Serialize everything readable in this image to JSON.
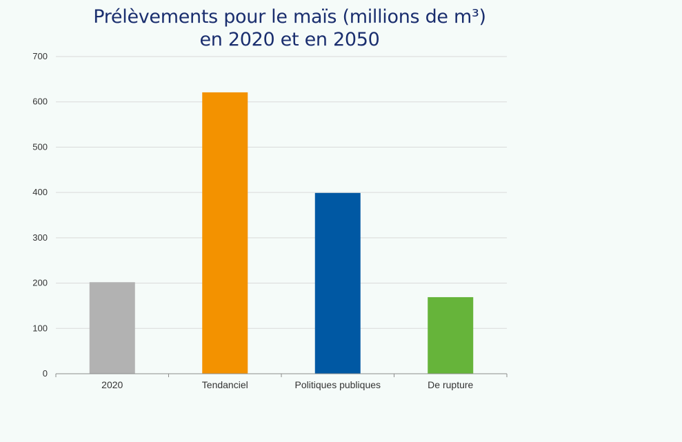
{
  "chart_data": {
    "type": "bar",
    "title_lines": [
      "Prélèvements pour le maïs (millions de m³)",
      "en 2020 et en 2050"
    ],
    "categories": [
      "2020",
      "Tendanciel",
      "Politiques publiques",
      "De rupture"
    ],
    "values": [
      202,
      621,
      399,
      169
    ],
    "colors": [
      "#b2b2b2",
      "#f39200",
      "#0058a3",
      "#66b43a"
    ],
    "ylim": [
      0,
      700
    ],
    "yticks": [
      0,
      100,
      200,
      300,
      400,
      500,
      600,
      700
    ],
    "xlabel": "",
    "ylabel": "",
    "grid": true,
    "legend": "none"
  }
}
